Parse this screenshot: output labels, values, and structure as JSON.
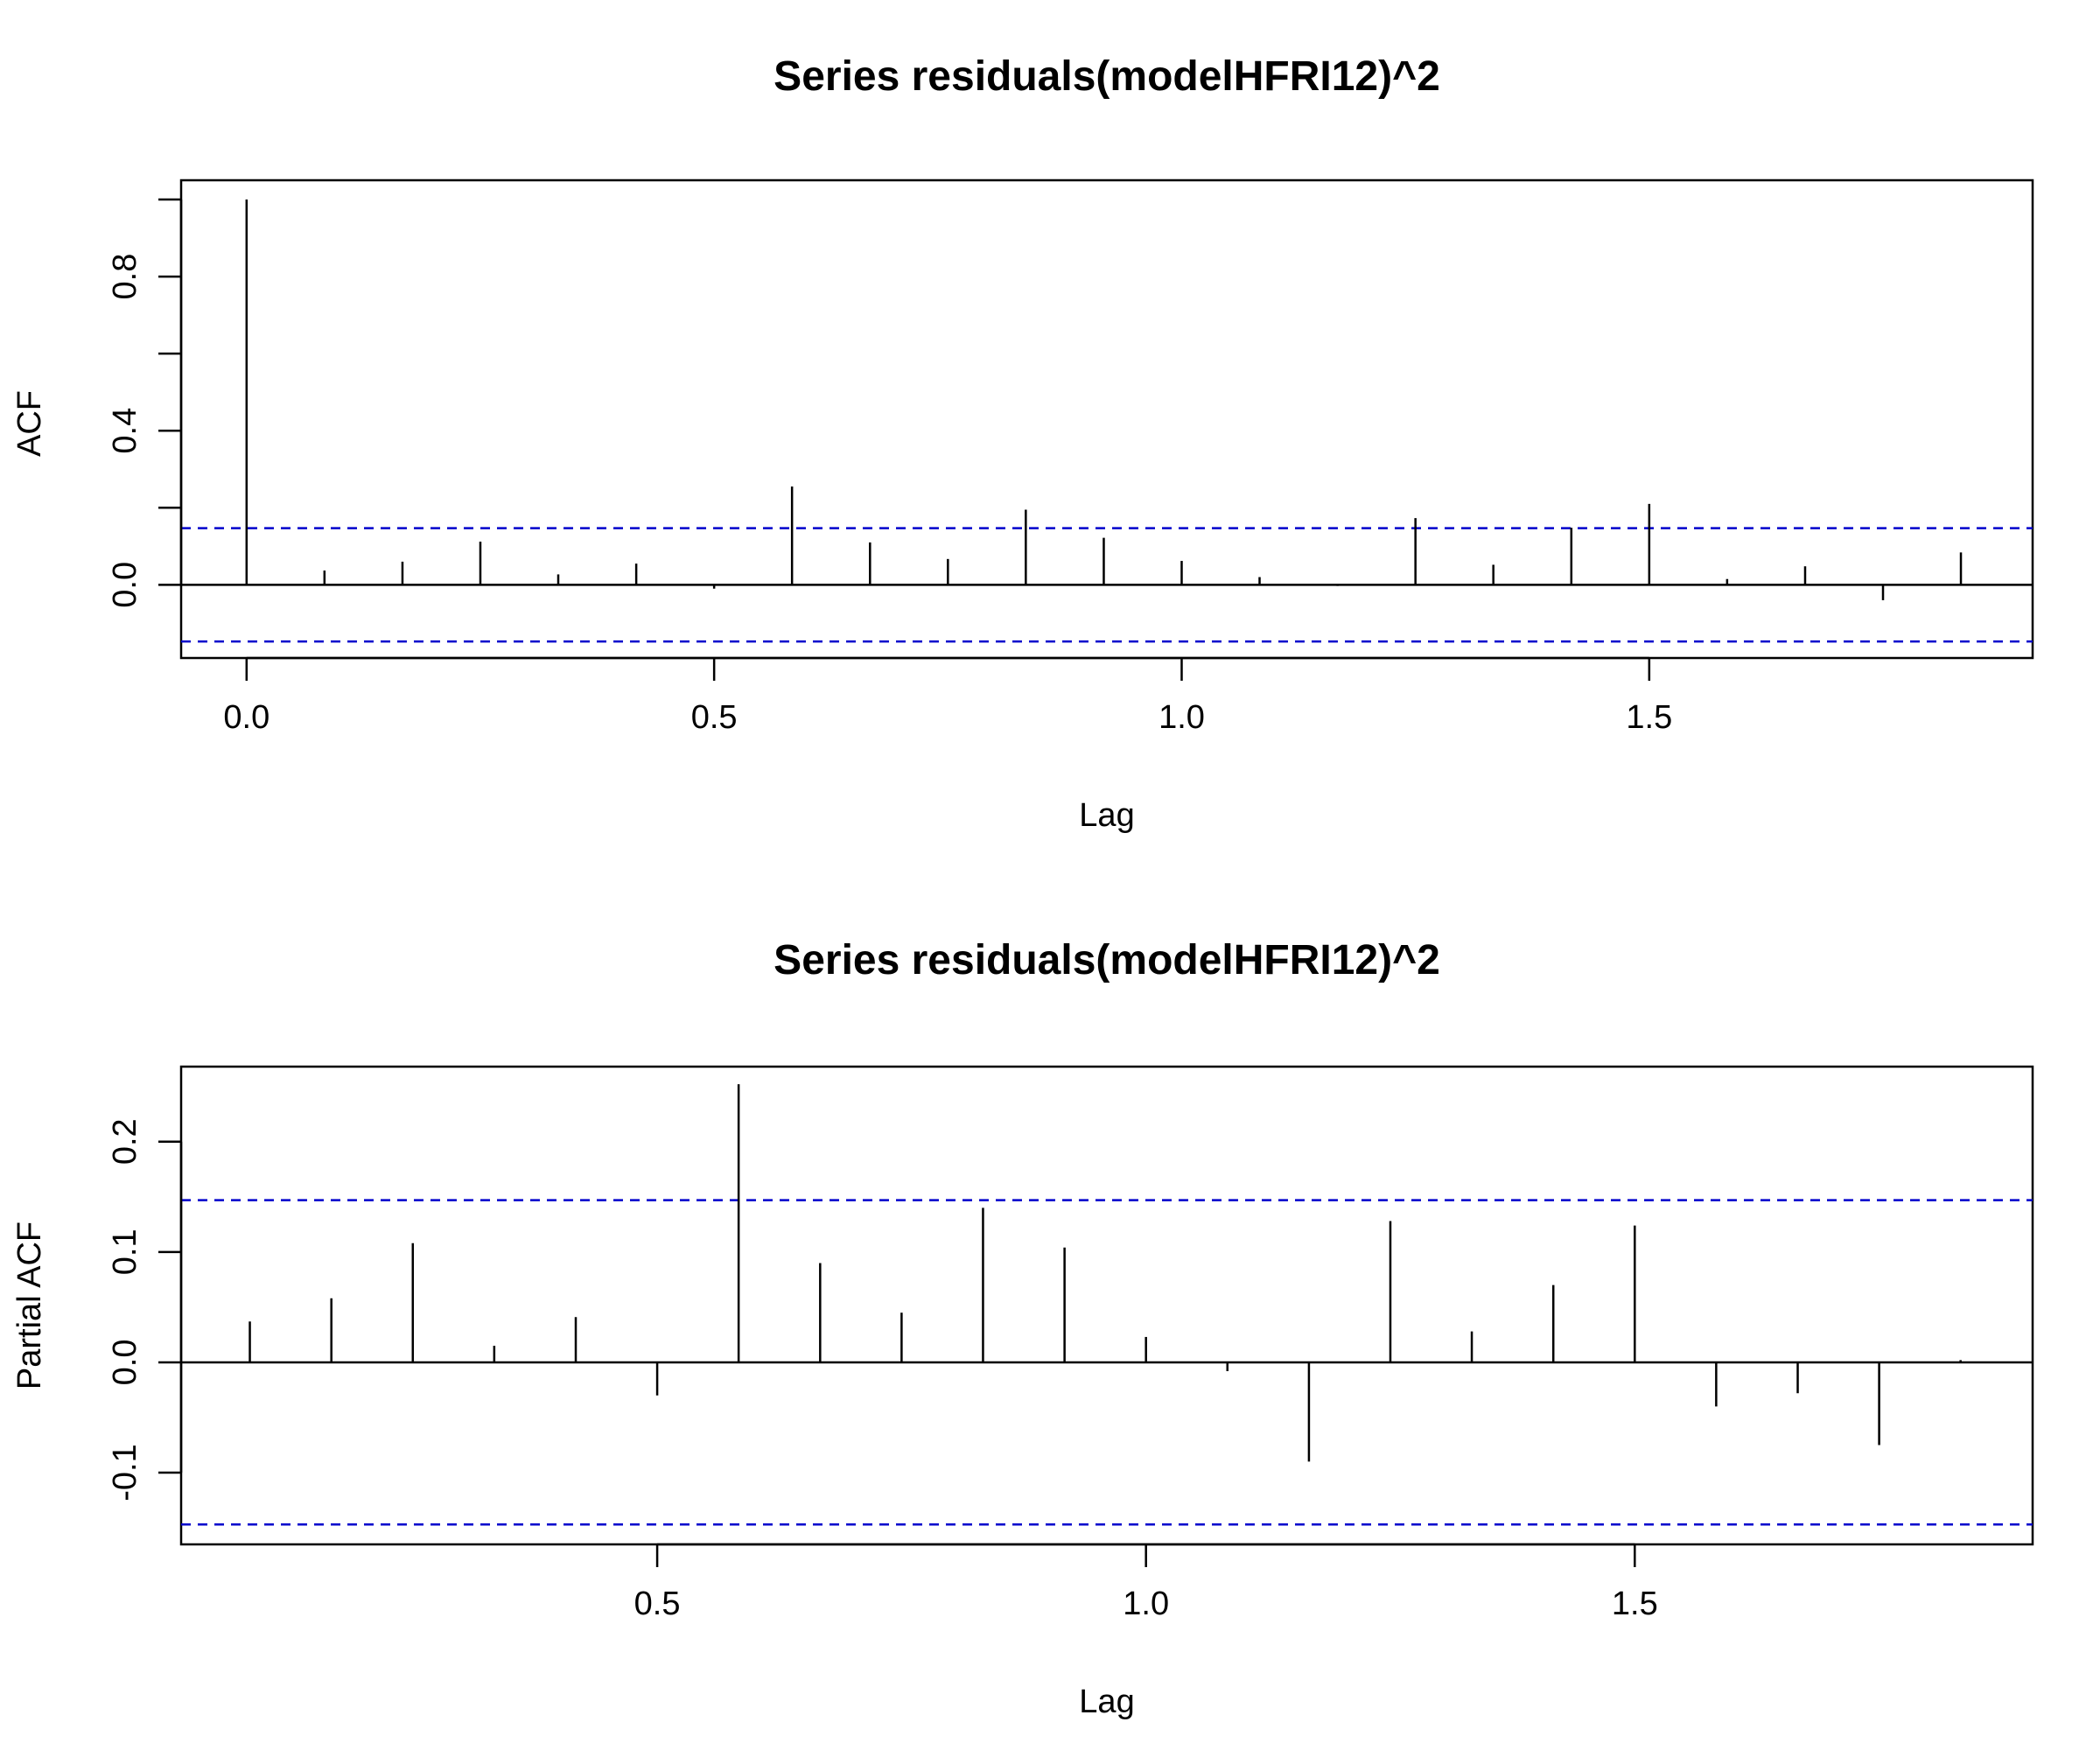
{
  "chart_data": [
    {
      "type": "bar",
      "title": "Series  residuals(modelHFRI12)^2",
      "xlabel": "Lag",
      "ylabel": "ACF",
      "xlim": [
        -0.07,
        1.91
      ],
      "ylim": [
        -0.19,
        1.05
      ],
      "xticks": [
        "0.0",
        "0.5",
        "1.0",
        "1.5"
      ],
      "yticks": [
        "0.0",
        "0.4",
        "0.8"
      ],
      "confidence_band": [
        0.147,
        -0.147
      ],
      "band_color": "#0000cc",
      "bar_color": "#000000",
      "points": [
        {
          "lag": 0.0,
          "value": 1.0
        },
        {
          "lag": 0.0833,
          "value": 0.037
        },
        {
          "lag": 0.1667,
          "value": 0.06
        },
        {
          "lag": 0.25,
          "value": 0.112
        },
        {
          "lag": 0.3333,
          "value": 0.027
        },
        {
          "lag": 0.4167,
          "value": 0.055
        },
        {
          "lag": 0.5,
          "value": -0.01
        },
        {
          "lag": 0.5833,
          "value": 0.255
        },
        {
          "lag": 0.6667,
          "value": 0.11
        },
        {
          "lag": 0.75,
          "value": 0.067
        },
        {
          "lag": 0.8333,
          "value": 0.195
        },
        {
          "lag": 0.9167,
          "value": 0.122
        },
        {
          "lag": 1.0,
          "value": 0.062
        },
        {
          "lag": 1.0833,
          "value": 0.02
        },
        {
          "lag": 1.1667,
          "value": -0.003
        },
        {
          "lag": 1.25,
          "value": 0.173
        },
        {
          "lag": 1.3333,
          "value": 0.052
        },
        {
          "lag": 1.4167,
          "value": 0.148
        },
        {
          "lag": 1.5,
          "value": 0.21
        },
        {
          "lag": 1.5833,
          "value": 0.015
        },
        {
          "lag": 1.6667,
          "value": 0.048
        },
        {
          "lag": 1.75,
          "value": -0.04
        },
        {
          "lag": 1.8333,
          "value": 0.084
        }
      ]
    },
    {
      "type": "bar",
      "title": "Series  residuals(modelHFRI12)^2",
      "xlabel": "Lag",
      "ylabel": "Partial ACF",
      "xlim": [
        0.013,
        1.907
      ],
      "ylim": [
        -0.165,
        0.268
      ],
      "xticks": [
        "0.5",
        "1.0",
        "1.5"
      ],
      "yticks": [
        "-0.1",
        "0.0",
        "0.1",
        "0.2"
      ],
      "confidence_band": [
        0.147,
        -0.147
      ],
      "band_color": "#0000cc",
      "bar_color": "#000000",
      "points": [
        {
          "lag": 0.0833,
          "value": 0.037
        },
        {
          "lag": 0.1667,
          "value": 0.058
        },
        {
          "lag": 0.25,
          "value": 0.108
        },
        {
          "lag": 0.3333,
          "value": 0.015
        },
        {
          "lag": 0.4167,
          "value": 0.041
        },
        {
          "lag": 0.5,
          "value": -0.03
        },
        {
          "lag": 0.5833,
          "value": 0.252
        },
        {
          "lag": 0.6667,
          "value": 0.09
        },
        {
          "lag": 0.75,
          "value": 0.045
        },
        {
          "lag": 0.8333,
          "value": 0.14
        },
        {
          "lag": 0.9167,
          "value": 0.104
        },
        {
          "lag": 1.0,
          "value": 0.023
        },
        {
          "lag": 1.0833,
          "value": -0.008
        },
        {
          "lag": 1.1667,
          "value": -0.09
        },
        {
          "lag": 1.25,
          "value": 0.128
        },
        {
          "lag": 1.3333,
          "value": 0.028
        },
        {
          "lag": 1.4167,
          "value": 0.07
        },
        {
          "lag": 1.5,
          "value": 0.124
        },
        {
          "lag": 1.5833,
          "value": -0.04
        },
        {
          "lag": 1.6667,
          "value": -0.028
        },
        {
          "lag": 1.75,
          "value": -0.075
        },
        {
          "lag": 1.8333,
          "value": 0.002
        }
      ]
    }
  ]
}
